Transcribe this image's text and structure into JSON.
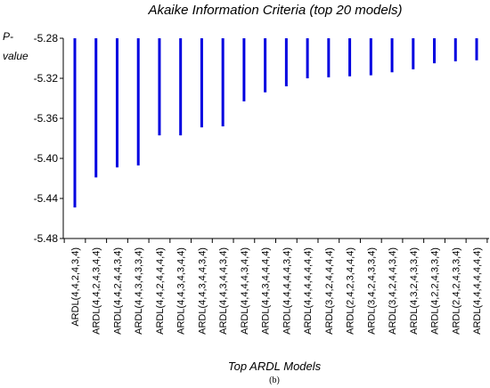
{
  "chart_data": {
    "type": "bar",
    "title": "Akaike Information Criteria (top 20 models)",
    "ylabel_line1": "P-",
    "ylabel_line2": "value",
    "xlabel": "Top ARDL Models",
    "caption": "(b)",
    "ylim": [
      -5.48,
      -5.28
    ],
    "yticks": [
      "-5.28",
      "-5.32",
      "-5.36",
      "-5.40",
      "-5.44",
      "-5.48"
    ],
    "grid": false,
    "bar_color": "#0000e0",
    "categories": [
      "ARDL(4,4,2,4,3,4)",
      "ARDL(4,4,2,4,3,4,4)",
      "ARDL(4,4,2,4,4,3,4)",
      "ARDL(4,4,3,4,3,3,4)",
      "ARDL(4,4,2,4,4,4,4)",
      "ARDL(4,4,3,4,3,4,4)",
      "ARDL(4,4,3,4,4,3,4)",
      "ARDL(4,4,3,4,4,3,4)",
      "ARDL(4,4,4,4,3,4,4)",
      "ARDL(4,4,3,4,4,4,4)",
      "ARDL(4,4,4,4,4,3,4)",
      "ARDL(4,4,4,4,4,4,4)",
      "ARDL(3,4,2,4,4,4,4)",
      "ARDL(2,4,2,3,4,4,4)",
      "ARDL(3,4,2,4,3,3,4)",
      "ARDL(3,4,2,4,4,3,4)",
      "ARDL(4,3,2,4,3,3,4)",
      "ARDL(4,2,2,4,3,3,4)",
      "ARDL(2,4,2,4,3,3,4)",
      "ARDL(4,4,4,4,4,4,4)"
    ],
    "values": [
      -5.449,
      -5.419,
      -5.409,
      -5.407,
      -5.377,
      -5.377,
      -5.369,
      -5.368,
      -5.343,
      -5.334,
      -5.328,
      -5.32,
      -5.319,
      -5.318,
      -5.317,
      -5.314,
      -5.311,
      -5.305,
      -5.303,
      -5.302
    ]
  }
}
